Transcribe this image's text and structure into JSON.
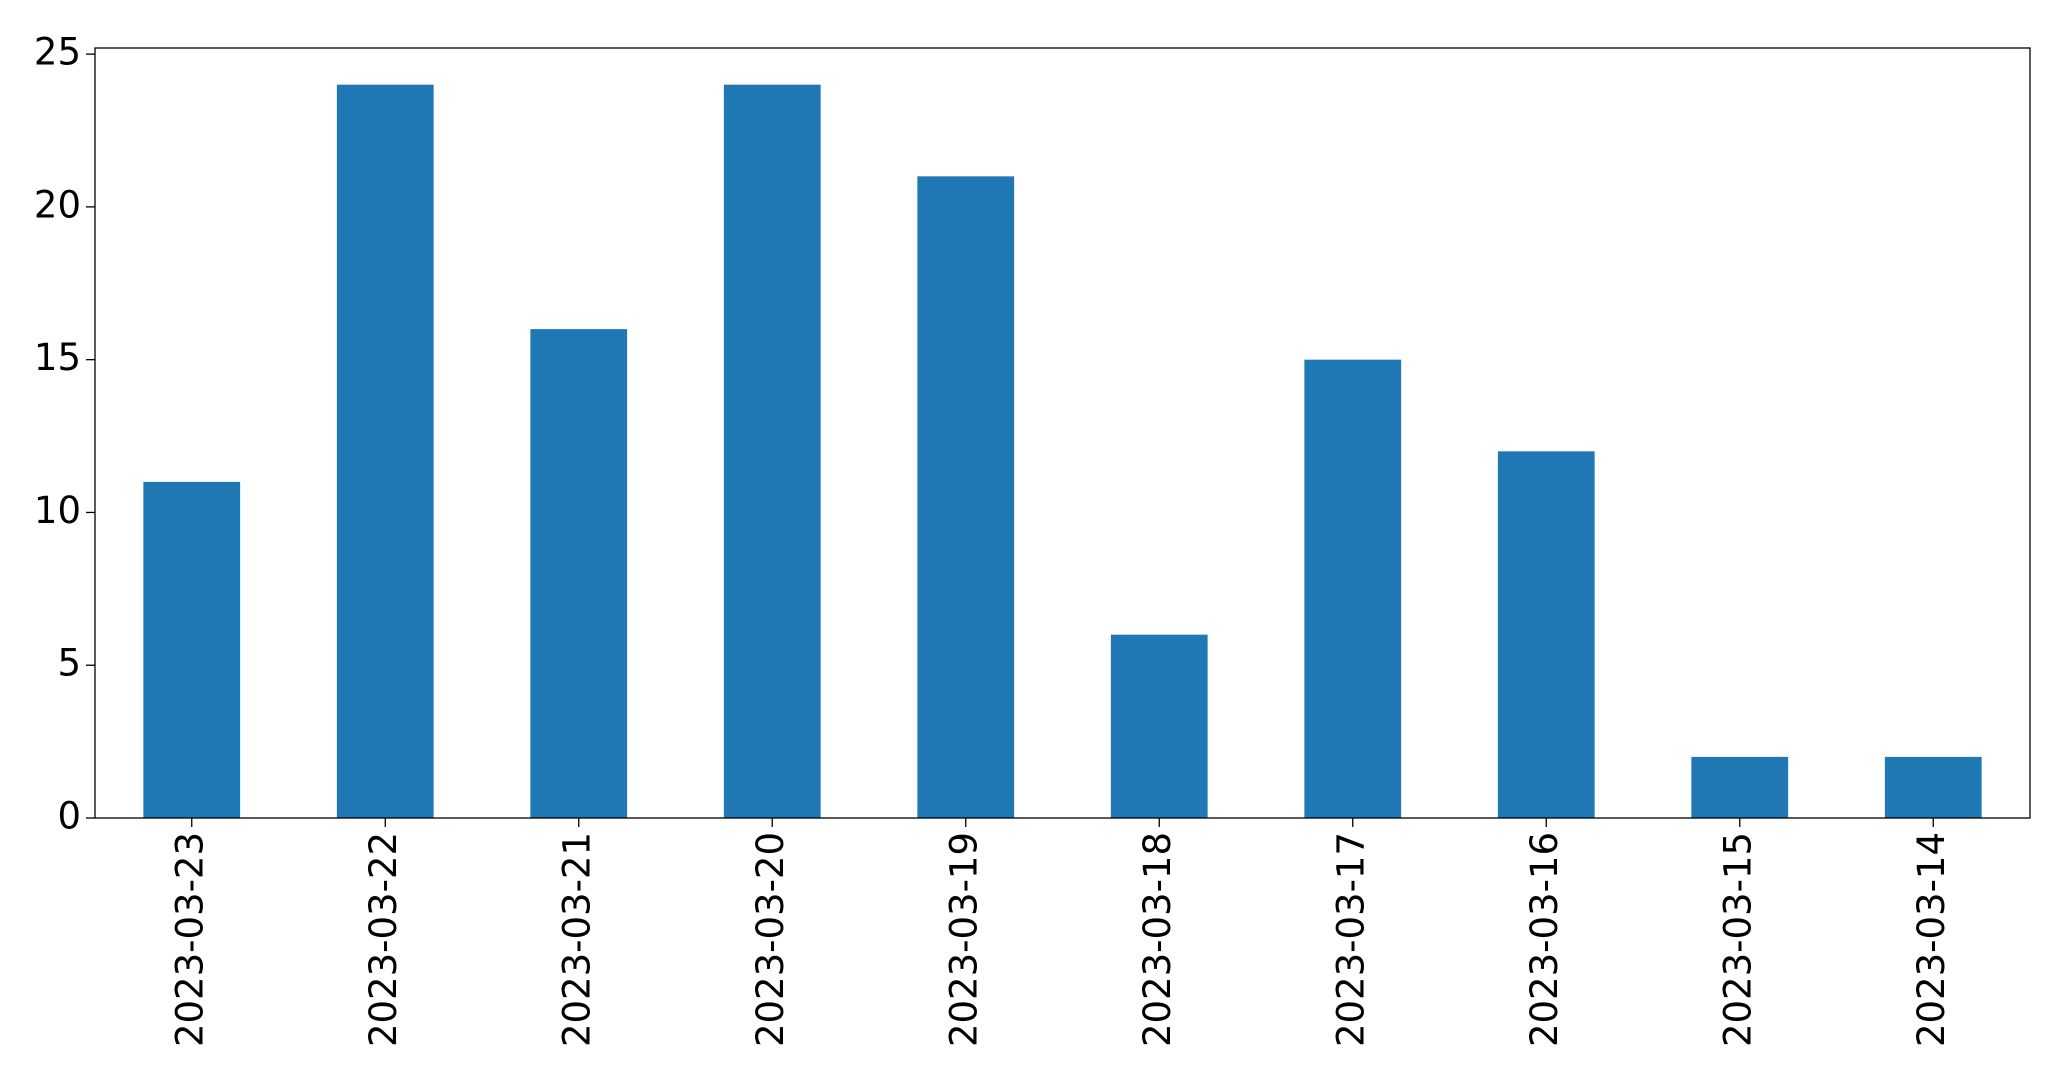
{
  "chart_data": {
    "type": "bar",
    "categories": [
      "2023-03-23",
      "2023-03-22",
      "2023-03-21",
      "2023-03-20",
      "2023-03-19",
      "2023-03-18",
      "2023-03-17",
      "2023-03-16",
      "2023-03-15",
      "2023-03-14"
    ],
    "values": [
      11,
      24,
      16,
      24,
      21,
      6,
      15,
      12,
      2,
      2
    ],
    "color": "#1f77b4",
    "ylim": [
      0,
      25.2
    ],
    "yticks": [
      0,
      5,
      10,
      15,
      20,
      25
    ],
    "grid": false
  }
}
